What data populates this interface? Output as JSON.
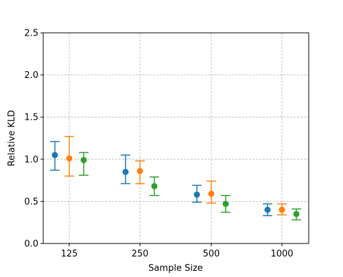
{
  "chart_data": {
    "type": "scatter",
    "title": "",
    "xlabel": "Sample Size",
    "ylabel": "Relative KLD",
    "categories": [
      "125",
      "250",
      "500",
      "1000"
    ],
    "ylim": [
      0,
      2.5
    ],
    "yticks": [
      "0.0",
      "0.5",
      "1.0",
      "1.5",
      "2.0",
      "2.5"
    ],
    "grid": true,
    "legend": "none",
    "series": [
      {
        "color": "#1f77b4",
        "values": [
          1.05,
          0.85,
          0.58,
          0.4
        ],
        "lower": [
          0.87,
          0.71,
          0.49,
          0.33
        ],
        "upper": [
          1.21,
          1.05,
          0.69,
          0.47
        ]
      },
      {
        "color": "#ff7f0e",
        "values": [
          1.01,
          0.86,
          0.59,
          0.4
        ],
        "lower": [
          0.8,
          0.71,
          0.48,
          0.34
        ],
        "upper": [
          1.27,
          0.98,
          0.74,
          0.47
        ]
      },
      {
        "color": "#2ca02c",
        "values": [
          0.99,
          0.68,
          0.47,
          0.35
        ],
        "lower": [
          0.81,
          0.57,
          0.37,
          0.28
        ],
        "upper": [
          1.08,
          0.79,
          0.57,
          0.41
        ]
      }
    ]
  }
}
